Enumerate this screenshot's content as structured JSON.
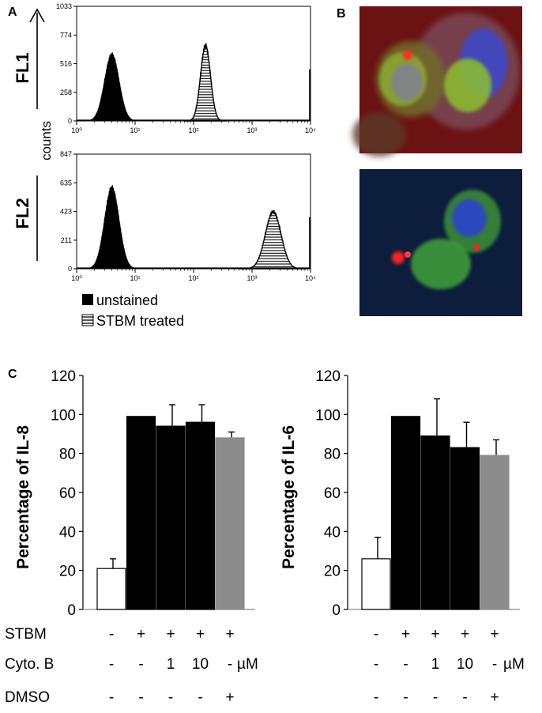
{
  "panels": {
    "a": {
      "letter": "A",
      "ylabel": "counts",
      "legend": [
        {
          "label": "unstained",
          "fill": "#000000"
        },
        {
          "label": "STBM treated",
          "fill": "hatched"
        }
      ]
    },
    "b": {
      "letter": "B",
      "colors": {
        "bg_top": "#6b1010",
        "bg_bottom": "#0c1c3a",
        "green": "#7bbf2a",
        "blue": "#2a46d8",
        "red": "#ff2020"
      }
    },
    "c": {
      "letter": "C",
      "row_labels": [
        "STBM",
        "Cyto. B",
        "DMSO"
      ],
      "row_values": [
        [
          "-",
          "+",
          "+",
          "+",
          "+"
        ],
        [
          "-",
          "-",
          "1",
          "10",
          "-"
        ],
        [
          "-",
          "-",
          "-",
          "-",
          "+"
        ]
      ],
      "unit": "µM"
    }
  },
  "chart_data": [
    {
      "type": "area",
      "channel": "FL1",
      "xscale": "log",
      "xlim": [
        1,
        10000
      ],
      "x_ticks": [
        1,
        10,
        100,
        1000,
        10000
      ],
      "x_tick_labels": [
        "10⁰",
        "10¹",
        "10²",
        "10³",
        "10⁴"
      ],
      "ylim": [
        0,
        1033
      ],
      "y_ticks": [
        0,
        258,
        516,
        774,
        1033
      ],
      "series": [
        {
          "name": "unstained",
          "peak_x": 4.0,
          "peak_y": 600
        },
        {
          "name": "STBM treated",
          "peak_x": 160,
          "peak_y": 680
        }
      ]
    },
    {
      "type": "area",
      "channel": "FL2",
      "xscale": "log",
      "xlim": [
        1,
        10000
      ],
      "x_ticks": [
        1,
        10,
        100,
        1000,
        10000
      ],
      "x_tick_labels": [
        "10⁰",
        "10¹",
        "10²",
        "10³",
        "10⁴"
      ],
      "ylim": [
        0,
        847
      ],
      "y_ticks": [
        0,
        211,
        423,
        635,
        847
      ],
      "series": [
        {
          "name": "unstained",
          "peak_x": 4.0,
          "peak_y": 600
        },
        {
          "name": "STBM treated",
          "peak_x": 2300,
          "peak_y": 420
        }
      ]
    },
    {
      "type": "bar",
      "ylabel": "Percentage of IL-8",
      "ylim": [
        0,
        120
      ],
      "y_ticks": [
        0,
        20,
        40,
        60,
        80,
        100,
        120
      ],
      "values": [
        21,
        99,
        94,
        96,
        88
      ],
      "errors": [
        5,
        0,
        11,
        9,
        3
      ],
      "colors": [
        "#ffffff",
        "#000000",
        "#000000",
        "#000000",
        "#8c8c8c"
      ]
    },
    {
      "type": "bar",
      "ylabel": "Percentage of IL-6",
      "ylim": [
        0,
        120
      ],
      "y_ticks": [
        0,
        20,
        40,
        60,
        80,
        100,
        120
      ],
      "values": [
        26,
        99,
        89,
        83,
        79
      ],
      "errors": [
        11,
        0,
        19,
        13,
        8
      ],
      "colors": [
        "#ffffff",
        "#000000",
        "#000000",
        "#000000",
        "#8c8c8c"
      ]
    }
  ]
}
